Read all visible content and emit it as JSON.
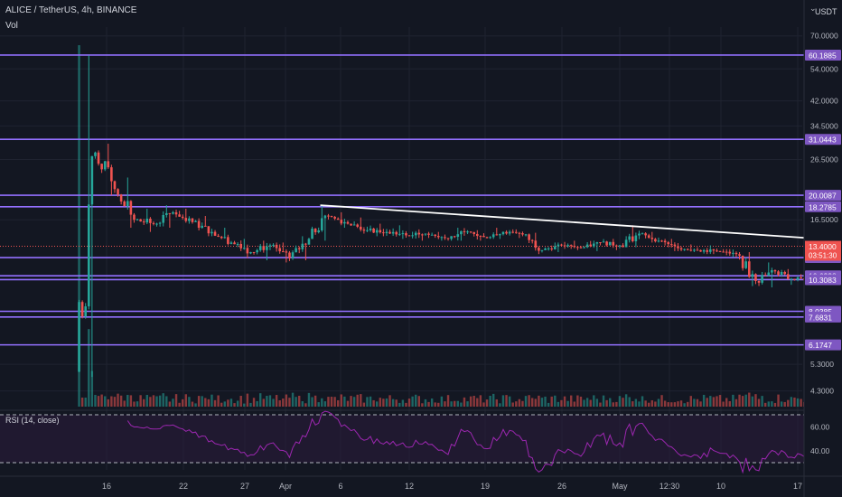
{
  "header": {
    "title": "ALICE / TetherUS, 4h, BINANCE",
    "vol_label": "Vol",
    "currency": "USDT",
    "currency_icon": "dropdown-icon"
  },
  "colors": {
    "background": "#131722",
    "grid": "#1f2330",
    "level_line": "#9370ff",
    "level_tag": "#7e57c2",
    "up": "#26a69a",
    "down": "#ef5350",
    "trendline": "#ffffff",
    "rsi_line": "#9c27b0",
    "rsi_band": "#2a1a3a"
  },
  "chart_data": {
    "type": "candlestick",
    "symbol": "ALICE / TetherUS",
    "interval": "4h",
    "exchange": "BINANCE",
    "y_scale": "log",
    "ylim": [
      3.8,
      75
    ],
    "price_ticks": [
      "70.0000",
      "54.0000",
      "42.0000",
      "34.5000",
      "26.5000",
      "16.5000",
      "5.3000",
      "4.3000"
    ],
    "x_tick_labels": [
      "16",
      "22",
      "27",
      "Apr",
      "6",
      "12",
      "19",
      "26",
      "May",
      "12:30",
      "10",
      "17"
    ],
    "horizontal_levels": [
      {
        "value": 60.1885,
        "label": "60.1885"
      },
      {
        "value": 31.0443,
        "label": "31.0443"
      },
      {
        "value": 20.0087,
        "label": "20.0087"
      },
      {
        "value": 18.2785,
        "label": "18.2785"
      },
      {
        "value": 12.2593,
        "label": "12.2593"
      },
      {
        "value": 10.6238,
        "label": "10.6238"
      },
      {
        "value": 10.3083,
        "label": "10.3083"
      },
      {
        "value": 8.0385,
        "label": "8.0385"
      },
      {
        "value": 7.6831,
        "label": "7.6831"
      },
      {
        "value": 6.1747,
        "label": "6.1747"
      }
    ],
    "current_price": {
      "value": 13.4,
      "label": "13.4000",
      "countdown": "03:51:30"
    },
    "trendline": {
      "start": {
        "date": "Mar 27",
        "price": 18.5
      },
      "end": {
        "date": "May 9",
        "price": 11.9
      }
    },
    "series": [
      {
        "kind": "daily_close_approx",
        "points": [
          {
            "date": "Mar 15",
            "open": 5.0,
            "high": 60.0,
            "low": 4.8,
            "close": 28.0
          },
          {
            "date": "Mar 16",
            "open": 28.0,
            "high": 30.0,
            "low": 20.0,
            "close": 21.0
          },
          {
            "date": "Mar 17",
            "open": 21.0,
            "high": 23.0,
            "low": 15.5,
            "close": 16.5
          },
          {
            "date": "Mar 18",
            "open": 16.5,
            "high": 18.0,
            "low": 15.0,
            "close": 16.0
          },
          {
            "date": "Mar 19",
            "open": 16.0,
            "high": 18.5,
            "low": 15.5,
            "close": 17.5
          },
          {
            "date": "Mar 20",
            "open": 17.5,
            "high": 18.0,
            "low": 16.0,
            "close": 16.2
          },
          {
            "date": "Mar 21",
            "open": 16.2,
            "high": 17.0,
            "low": 14.5,
            "close": 15.0
          },
          {
            "date": "Mar 22",
            "open": 15.0,
            "high": 15.5,
            "low": 13.5,
            "close": 13.8
          },
          {
            "date": "Mar 23",
            "open": 13.8,
            "high": 14.2,
            "low": 12.2,
            "close": 12.8
          },
          {
            "date": "Mar 24",
            "open": 12.8,
            "high": 14.0,
            "low": 12.0,
            "close": 13.5
          },
          {
            "date": "Mar 25",
            "open": 13.5,
            "high": 13.8,
            "low": 11.8,
            "close": 12.2
          },
          {
            "date": "Mar 26",
            "open": 12.2,
            "high": 14.5,
            "low": 12.0,
            "close": 14.2
          },
          {
            "date": "Mar 27",
            "open": 14.2,
            "high": 18.5,
            "low": 14.0,
            "close": 17.0
          },
          {
            "date": "Mar 28",
            "open": 17.0,
            "high": 17.5,
            "low": 15.5,
            "close": 16.0
          },
          {
            "date": "Mar 29",
            "open": 16.0,
            "high": 16.8,
            "low": 14.8,
            "close": 15.2
          },
          {
            "date": "Mar 30",
            "open": 15.2,
            "high": 16.0,
            "low": 14.5,
            "close": 15.0
          },
          {
            "date": "Mar 31",
            "open": 15.0,
            "high": 15.8,
            "low": 14.2,
            "close": 14.6
          },
          {
            "date": "Apr 1",
            "open": 14.6,
            "high": 15.3,
            "low": 14.0,
            "close": 14.8
          },
          {
            "date": "Apr 2",
            "open": 14.8,
            "high": 15.0,
            "low": 14.0,
            "close": 14.3
          },
          {
            "date": "Apr 3",
            "open": 14.3,
            "high": 15.5,
            "low": 14.0,
            "close": 15.0
          },
          {
            "date": "Apr 4",
            "open": 15.0,
            "high": 15.2,
            "low": 14.0,
            "close": 14.4
          },
          {
            "date": "Apr 5",
            "open": 14.4,
            "high": 15.5,
            "low": 14.2,
            "close": 15.0
          },
          {
            "date": "Apr 6",
            "open": 15.0,
            "high": 15.3,
            "low": 14.3,
            "close": 14.7
          },
          {
            "date": "Apr 7",
            "open": 14.7,
            "high": 14.9,
            "low": 12.6,
            "close": 13.0
          },
          {
            "date": "Apr 8",
            "open": 13.0,
            "high": 13.8,
            "low": 12.8,
            "close": 13.5
          },
          {
            "date": "Apr 9",
            "open": 13.5,
            "high": 14.0,
            "low": 13.0,
            "close": 13.2
          },
          {
            "date": "Apr 10",
            "open": 13.2,
            "high": 14.0,
            "low": 12.9,
            "close": 13.8
          },
          {
            "date": "Apr 11",
            "open": 13.8,
            "high": 14.2,
            "low": 13.0,
            "close": 13.5
          },
          {
            "date": "Apr 12",
            "open": 13.5,
            "high": 15.8,
            "low": 13.3,
            "close": 14.8
          },
          {
            "date": "Apr 13",
            "open": 14.8,
            "high": 15.0,
            "low": 13.8,
            "close": 14.0
          },
          {
            "date": "Apr 14",
            "open": 14.0,
            "high": 14.2,
            "low": 12.9,
            "close": 13.2
          },
          {
            "date": "Apr 15",
            "open": 13.2,
            "high": 13.6,
            "low": 12.8,
            "close": 13.0
          },
          {
            "date": "Apr 16",
            "open": 13.0,
            "high": 13.5,
            "low": 12.6,
            "close": 12.9
          },
          {
            "date": "Apr 17",
            "open": 12.9,
            "high": 13.1,
            "low": 12.3,
            "close": 12.6
          },
          {
            "date": "Apr 18",
            "open": 12.6,
            "high": 12.8,
            "low": 9.8,
            "close": 10.2
          },
          {
            "date": "Apr 19",
            "open": 10.2,
            "high": 11.8,
            "low": 9.7,
            "close": 11.0
          },
          {
            "date": "Apr 20",
            "open": 11.0,
            "high": 11.2,
            "low": 9.9,
            "close": 10.3
          },
          {
            "date": "Apr 21",
            "open": 10.3,
            "high": 10.8,
            "low": 9.8,
            "close": 10.5
          },
          {
            "date": "Apr 22",
            "open": 10.5,
            "high": 10.7,
            "low": 9.9,
            "close": 10.0
          },
          {
            "date": "Apr 23",
            "open": 10.0,
            "high": 10.2,
            "low": 7.0,
            "close": 7.6
          },
          {
            "date": "Apr 24",
            "open": 7.6,
            "high": 8.5,
            "low": 6.3,
            "close": 7.2
          },
          {
            "date": "Apr 25",
            "open": 7.2,
            "high": 7.9,
            "low": 6.9,
            "close": 7.5
          },
          {
            "date": "Apr 26",
            "open": 7.5,
            "high": 10.5,
            "low": 7.4,
            "close": 9.8
          },
          {
            "date": "Apr 27",
            "open": 9.8,
            "high": 10.6,
            "low": 9.3,
            "close": 10.2
          },
          {
            "date": "Apr 28",
            "open": 10.2,
            "high": 12.4,
            "low": 10.0,
            "close": 12.0
          },
          {
            "date": "Apr 29",
            "open": 12.0,
            "high": 15.9,
            "low": 11.8,
            "close": 14.4
          },
          {
            "date": "Apr 30",
            "open": 14.4,
            "high": 14.8,
            "low": 13.1,
            "close": 13.4
          }
        ]
      }
    ],
    "volume": {
      "label": "Vol",
      "note": "bars at bottom of price pane; spike on first candle"
    },
    "rsi": {
      "title": "RSI (14, close)",
      "ticks": [
        "60.00",
        "40.00"
      ],
      "upper_band": 70,
      "lower_band": 30
    }
  }
}
